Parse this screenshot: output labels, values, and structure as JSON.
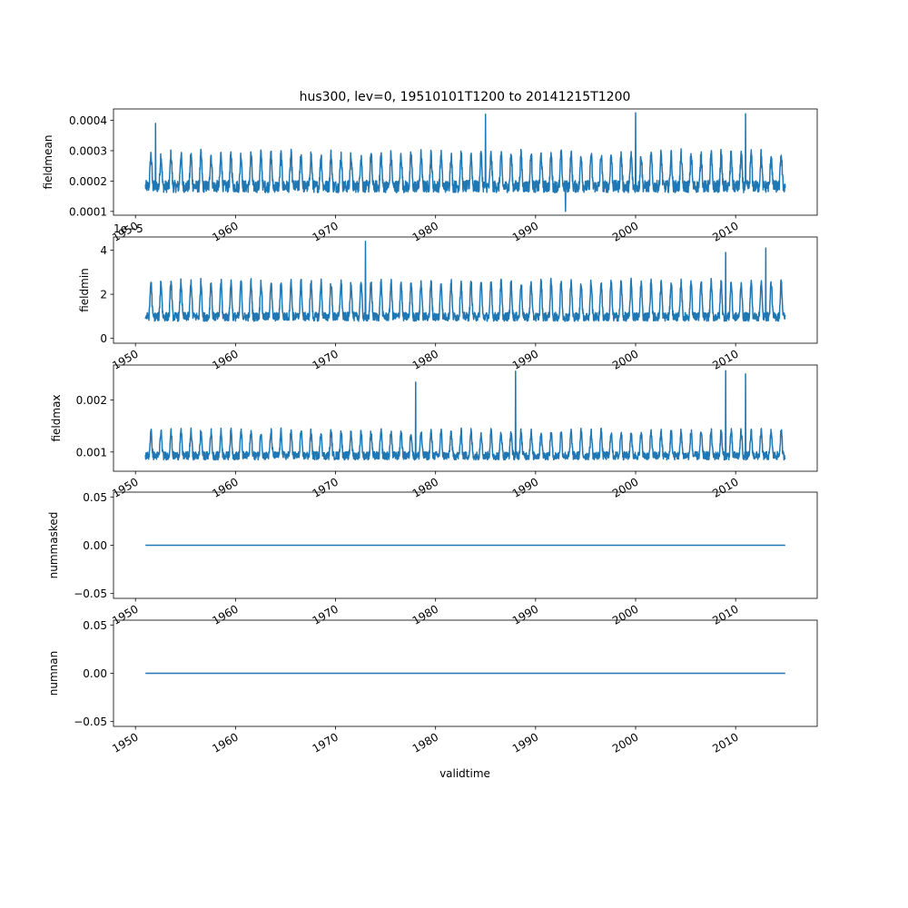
{
  "chart_data": {
    "type": "line",
    "title": "hus300, lev=0, 19510101T1200 to 20141215T1200",
    "xlabel": "validtime",
    "x_range": [
      "1951-01-01T12:00",
      "2014-12-15T12:00"
    ],
    "x_ticks": [
      "1950",
      "1960",
      "1970",
      "1980",
      "1990",
      "2000",
      "2010"
    ],
    "line_color": "#1f77b4",
    "subplots": [
      {
        "ylabel": "fieldmean",
        "ylim": [
          8.75e-05,
          0.0004375
        ],
        "yticks": [
          "0.0001",
          "0.0002",
          "0.0003",
          "0.0004"
        ],
        "offset_text": "",
        "baseline": 0.00021,
        "seasonal_amplitude": 8e-05,
        "noise": 2e-05,
        "peaks": [
          {
            "date": "1952-01-01",
            "value": 0.00039
          },
          {
            "date": "1985-01-01",
            "value": 0.00042
          },
          {
            "date": "2000-01-01",
            "value": 0.000425
          },
          {
            "date": "2011-01-01",
            "value": 0.000422
          }
        ],
        "troughs": [
          {
            "date": "1993-01-01",
            "value": 0.0001
          }
        ]
      },
      {
        "ylabel": "fieldmin",
        "ylim": [
          -2.2e-06,
          4.6e-05
        ],
        "yticks": [
          "0",
          "2",
          "4"
        ],
        "offset_text": "1e−5",
        "baseline": 1.4e-05,
        "seasonal_amplitude": 1.2e-05,
        "noise": 2e-06,
        "peaks": [
          {
            "date": "1973-01-01",
            "value": 4.4e-05
          },
          {
            "date": "2013-01-01",
            "value": 4.1e-05
          },
          {
            "date": "2009-01-01",
            "value": 3.9e-05
          }
        ],
        "troughs": []
      },
      {
        "ylabel": "fieldmax",
        "ylim": [
          0.00063,
          0.00267
        ],
        "yticks": [
          "0.001",
          "0.002"
        ],
        "offset_text": "",
        "baseline": 0.00105,
        "seasonal_amplitude": 0.00035,
        "noise": 8e-05,
        "peaks": [
          {
            "date": "1978-01-01",
            "value": 0.00234
          },
          {
            "date": "1988-01-01",
            "value": 0.00255
          },
          {
            "date": "2009-01-01",
            "value": 0.00256
          },
          {
            "date": "2011-01-01",
            "value": 0.0025
          }
        ],
        "troughs": []
      },
      {
        "ylabel": "nummasked",
        "ylim": [
          -0.055,
          0.055
        ],
        "yticks": [
          "0.05",
          "0.00",
          "−0.05"
        ],
        "offset_text": "",
        "constant": 0
      },
      {
        "ylabel": "numnan",
        "ylim": [
          -0.055,
          0.055
        ],
        "yticks": [
          "0.05",
          "0.00",
          "−0.05"
        ],
        "offset_text": "",
        "constant": 0
      }
    ]
  }
}
